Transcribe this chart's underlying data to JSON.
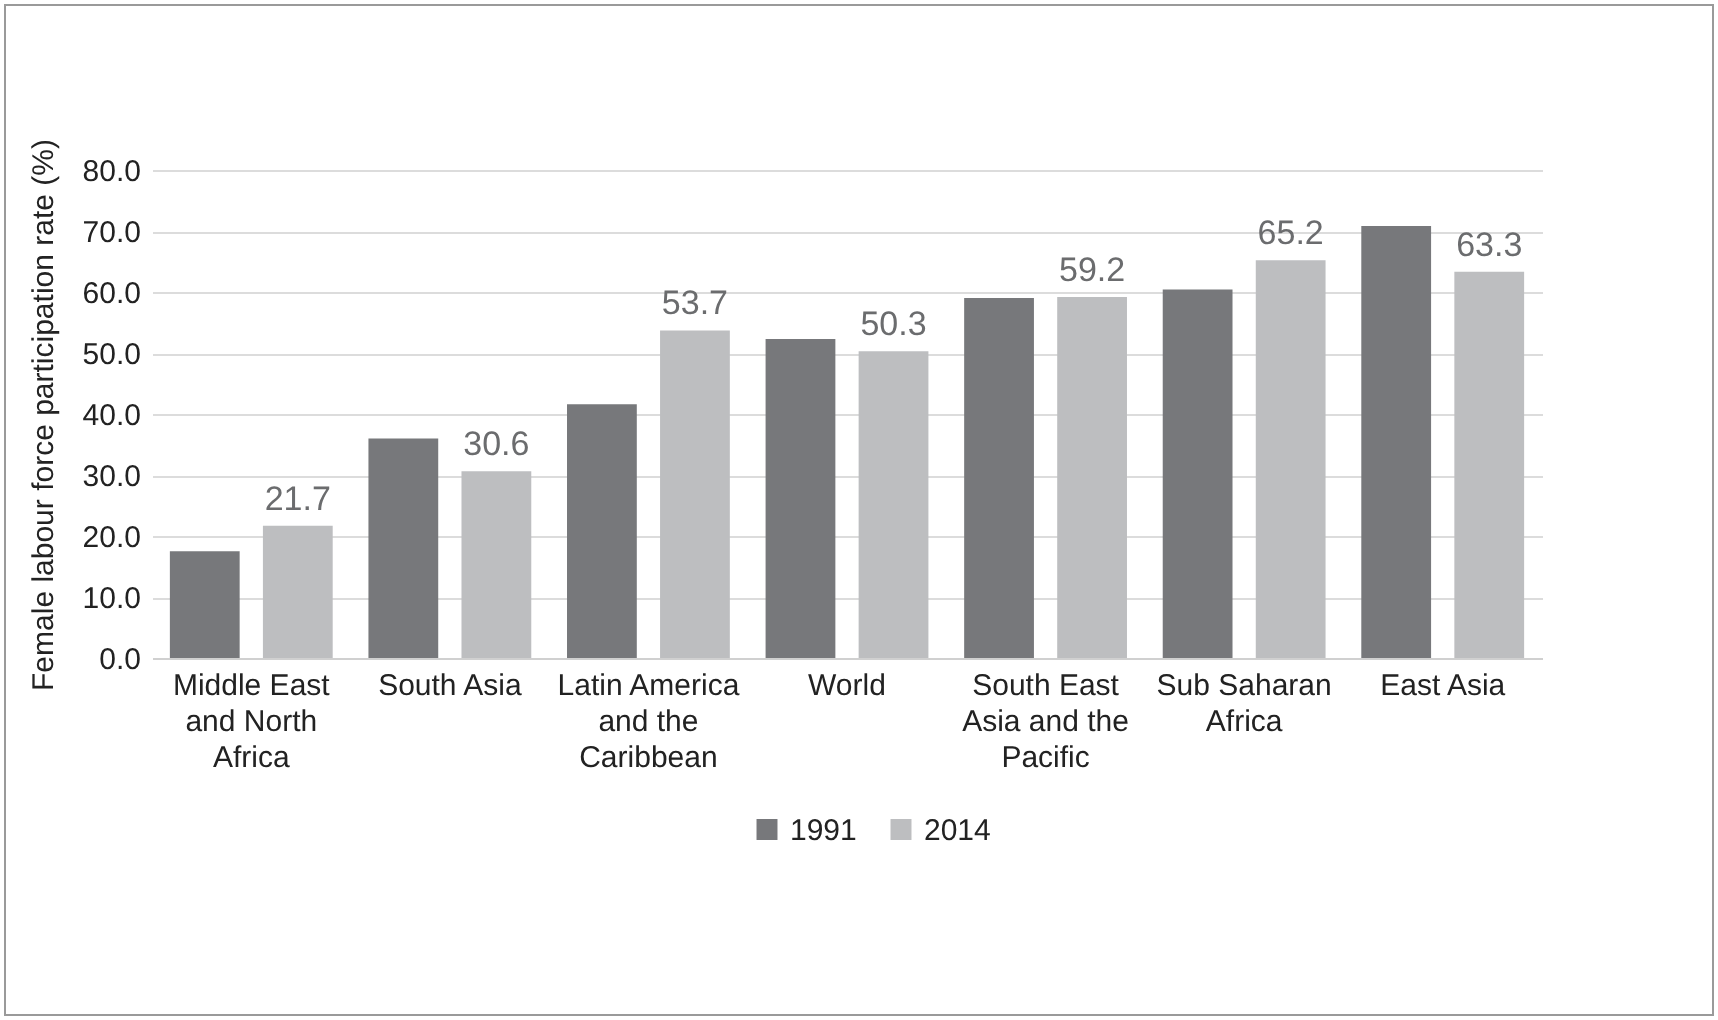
{
  "chart_data": {
    "type": "bar",
    "ylabel": "Female labour force participation rate (%)",
    "categories": [
      "Middle East and North Africa",
      "South Asia",
      "Latin America and the Caribbean",
      "World",
      "South East Asia and the Pacific",
      "Sub Saharan Africa",
      "East Asia"
    ],
    "series": [
      {
        "name": "1991",
        "color": "#77787b",
        "values": [
          17.5,
          36.0,
          41.6,
          52.3,
          59.0,
          60.4,
          70.8
        ]
      },
      {
        "name": "2014",
        "color": "#bdbec0",
        "values": [
          21.7,
          30.6,
          53.7,
          50.3,
          59.2,
          65.2,
          63.3
        ],
        "value_labels": [
          "21.7",
          "30.6",
          "53.7",
          "50.3",
          "59.2",
          "65.2",
          "63.3"
        ]
      }
    ],
    "ylim": [
      0,
      80
    ],
    "yticks": [
      {
        "value": 0,
        "label": "0.0"
      },
      {
        "value": 10,
        "label": "10.0"
      },
      {
        "value": 20,
        "label": "20.0"
      },
      {
        "value": 30,
        "label": "30.0"
      },
      {
        "value": 40,
        "label": "40.0"
      },
      {
        "value": 50,
        "label": "50.0"
      },
      {
        "value": 60,
        "label": "60.0"
      },
      {
        "value": 70,
        "label": "70.0"
      },
      {
        "value": 80,
        "label": "80.0"
      }
    ],
    "grid": "y",
    "legend": "bottom"
  }
}
